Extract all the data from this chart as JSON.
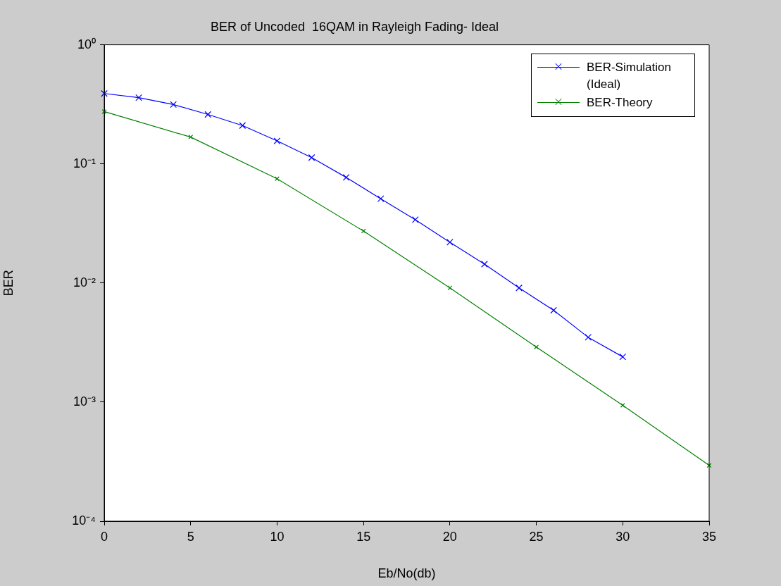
{
  "chart_data": {
    "type": "line",
    "title": "BER of Uncoded  16QAM in Rayleigh Fading- Ideal",
    "xlabel": "Eb/No(db)",
    "ylabel": "BER",
    "series": [
      {
        "name": "BER-Simulation (Ideal)",
        "color": "#0000ff",
        "marker": "cross",
        "x": [
          0,
          2,
          4,
          6,
          8,
          10,
          12,
          14,
          16,
          18,
          20,
          22,
          24,
          26,
          28,
          30
        ],
        "values": [
          0.39,
          0.36,
          0.315,
          0.26,
          0.21,
          0.156,
          0.113,
          0.077,
          0.051,
          0.034,
          0.022,
          0.0144,
          0.0091,
          0.0059,
          0.0035,
          0.0024
        ]
      },
      {
        "name": "BER-Theory",
        "color": "#008000",
        "marker": "cross",
        "x": [
          0,
          5,
          10,
          15,
          20,
          25,
          30,
          35
        ],
        "values": [
          0.275,
          0.168,
          0.075,
          0.0273,
          0.0091,
          0.0029,
          0.00094,
          0.000294
        ]
      }
    ],
    "xlim": [
      0,
      35
    ],
    "xticks": [
      0,
      5,
      10,
      15,
      20,
      25,
      30,
      35
    ],
    "ylim": [
      0.0001,
      1
    ],
    "yticks": [
      {
        "value": 1,
        "label": "10⁰"
      },
      {
        "value": 0.1,
        "label": "10⁻¹"
      },
      {
        "value": 0.01,
        "label": "10⁻²"
      },
      {
        "value": 0.001,
        "label": "10⁻³"
      },
      {
        "value": 0.0001,
        "label": "10⁻⁴"
      }
    ],
    "log": "y",
    "legend": "top right",
    "line_style": "solid"
  }
}
